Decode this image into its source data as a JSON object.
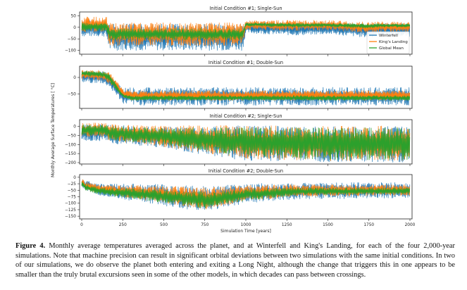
{
  "chart_data": [
    {
      "type": "line",
      "title": "Initial Condition #1; Single-Sun",
      "xlim": [
        0,
        2000
      ],
      "ylim": [
        -110,
        60
      ],
      "yticks": [
        50,
        0,
        -50,
        -100
      ],
      "legend": [
        "Winterfell",
        "King's Landing",
        "Global Mean"
      ],
      "legend_position": "right",
      "series": [
        {
          "name": "Winterfell",
          "color": "#1f77b4",
          "x": [
            0,
            150,
            170,
            190,
            980,
            1000,
            1300,
            1500,
            1750,
            1800,
            2000
          ],
          "low": [
            -40,
            -40,
            -100,
            -100,
            -100,
            -25,
            -35,
            -30,
            -45,
            -40,
            -40
          ],
          "high": [
            30,
            30,
            15,
            15,
            15,
            22,
            20,
            20,
            15,
            18,
            15
          ]
        },
        {
          "name": "King's Landing",
          "color": "#ff7f0e",
          "x": [
            0,
            150,
            170,
            190,
            980,
            1000,
            1300,
            1500,
            1750,
            1800,
            2000
          ],
          "low": [
            -20,
            -20,
            -80,
            -80,
            -80,
            -10,
            -15,
            -12,
            -25,
            -20,
            -20
          ],
          "high": [
            45,
            45,
            20,
            20,
            20,
            30,
            30,
            30,
            22,
            25,
            22
          ]
        },
        {
          "name": "Global Mean",
          "color": "#2ca02c",
          "x": [
            0,
            150,
            170,
            190,
            980,
            1000,
            1300,
            1500,
            1750,
            1800,
            2000
          ],
          "low": [
            -15,
            -15,
            -55,
            -55,
            -55,
            5,
            0,
            2,
            -5,
            0,
            0
          ],
          "high": [
            20,
            20,
            -5,
            -5,
            -5,
            20,
            18,
            18,
            15,
            16,
            15
          ]
        }
      ]
    },
    {
      "type": "line",
      "title": "Initial Condition #1; Double-Sun",
      "xlim": [
        0,
        2000
      ],
      "ylim": [
        -90,
        30
      ],
      "yticks": [
        0,
        -50
      ],
      "series": [
        {
          "name": "Winterfell",
          "color": "#1f77b4",
          "x": [
            0,
            130,
            170,
            250,
            300,
            2000
          ],
          "low": [
            -15,
            -20,
            -30,
            -80,
            -85,
            -85
          ],
          "high": [
            20,
            20,
            10,
            -30,
            -30,
            -30
          ]
        },
        {
          "name": "King's Landing",
          "color": "#ff7f0e",
          "x": [
            0,
            130,
            170,
            250,
            300,
            2000
          ],
          "low": [
            -5,
            -10,
            -20,
            -60,
            -70,
            -70
          ],
          "high": [
            22,
            22,
            15,
            -35,
            -40,
            -40
          ]
        },
        {
          "name": "Global Mean",
          "color": "#2ca02c",
          "x": [
            0,
            130,
            170,
            250,
            300,
            2000
          ],
          "low": [
            5,
            0,
            -15,
            -60,
            -70,
            -70
          ],
          "high": [
            20,
            18,
            10,
            -50,
            -55,
            -55
          ]
        }
      ]
    },
    {
      "type": "line",
      "title": "Initial Condition #2; Single-Sun",
      "xlim": [
        0,
        2000
      ],
      "ylim": [
        -200,
        30
      ],
      "yticks": [
        0,
        -50,
        -100,
        -150,
        -200
      ],
      "series": [
        {
          "name": "Winterfell",
          "color": "#1f77b4",
          "x": [
            0,
            150,
            170,
            400,
            700,
            1000,
            1500,
            2000
          ],
          "low": [
            -80,
            -80,
            -95,
            -110,
            -150,
            -190,
            -200,
            -200
          ],
          "high": [
            15,
            15,
            10,
            0,
            0,
            5,
            0,
            0
          ]
        },
        {
          "name": "King's Landing",
          "color": "#ff7f0e",
          "x": [
            0,
            150,
            170,
            400,
            700,
            1000,
            1500,
            2000
          ],
          "low": [
            -60,
            -60,
            -80,
            -100,
            -140,
            -180,
            -190,
            -190
          ],
          "high": [
            20,
            20,
            12,
            5,
            5,
            5,
            3,
            3
          ]
        },
        {
          "name": "Global Mean",
          "color": "#2ca02c",
          "x": [
            0,
            150,
            170,
            400,
            700,
            1000,
            1500,
            2000
          ],
          "low": [
            -50,
            -50,
            -75,
            -95,
            -130,
            -170,
            -185,
            -185
          ],
          "high": [
            10,
            10,
            5,
            -5,
            -5,
            -5,
            -5,
            -5
          ]
        }
      ]
    },
    {
      "type": "line",
      "title": "Initial Condition #2; Double-Sun",
      "xlim": [
        0,
        2000
      ],
      "ylim": [
        -155,
        5
      ],
      "yticks": [
        0,
        -25,
        -50,
        -75,
        -100,
        -125,
        -150
      ],
      "xticks": [
        0,
        250,
        500,
        750,
        1000,
        1250,
        1500,
        1750,
        2000
      ],
      "xlabel": "Simulation Time [years]",
      "series": [
        {
          "name": "Winterfell",
          "color": "#1f77b4",
          "x": [
            0,
            20,
            100,
            400,
            750,
            1000,
            1300,
            2000
          ],
          "low": [
            -40,
            -50,
            -70,
            -100,
            -135,
            -100,
            -85,
            -80
          ],
          "high": [
            0,
            -10,
            -25,
            -25,
            -35,
            -25,
            -20,
            -20
          ]
        },
        {
          "name": "King's Landing",
          "color": "#ff7f0e",
          "x": [
            0,
            20,
            100,
            400,
            750,
            1000,
            1300,
            2000
          ],
          "low": [
            -30,
            -45,
            -60,
            -90,
            -125,
            -90,
            -75,
            -70
          ],
          "high": [
            -5,
            -15,
            -30,
            -30,
            -40,
            -30,
            -28,
            -28
          ]
        },
        {
          "name": "Global Mean",
          "color": "#2ca02c",
          "x": [
            0,
            20,
            100,
            400,
            750,
            1000,
            1300,
            2000
          ],
          "low": [
            -35,
            -50,
            -65,
            -90,
            -120,
            -90,
            -70,
            -65
          ],
          "high": [
            -15,
            -25,
            -40,
            -45,
            -55,
            -45,
            -40,
            -40
          ]
        }
      ]
    }
  ],
  "ylabel": "Monthly Average Surface Temperatures [ °C]",
  "caption": {
    "label": "Figure 4.",
    "text": "Monthly average temperatures averaged across the planet, and at Winterfell and King's Landing, for each of the four 2,000-year simulations. Note that machine precision can result in significant orbital deviations between two simulations with the same initial conditions. In two of our simulations, we do observe the planet both entering and exiting a Long Night, although the change that triggers this in one appears to be smaller than the truly brutal excursions seen in some of the other models, in which decades can pass between crossings."
  }
}
